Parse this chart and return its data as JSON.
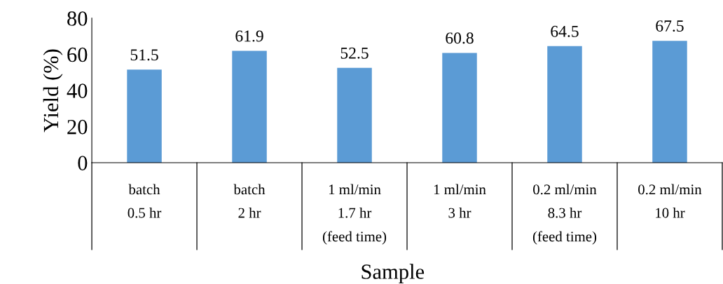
{
  "chart_data": {
    "type": "bar",
    "xlabel": "Sample",
    "ylabel": "Yield (%)",
    "categories": [
      "batch\n0.5 hr",
      "batch\n2 hr",
      "1 ml/min\n1.7 hr\n(feed time)",
      "1 ml/min\n3 hr",
      "0.2 ml/min\n8.3 hr\n(feed time)",
      "0.2 ml/min\n10 hr"
    ],
    "values": [
      51.5,
      61.9,
      52.5,
      60.8,
      64.5,
      67.5
    ],
    "color": "#5b9bd5",
    "ylim": [
      0,
      80
    ],
    "yticks": [
      0,
      20,
      40,
      60,
      80
    ],
    "grid": false,
    "data_labels": true
  }
}
